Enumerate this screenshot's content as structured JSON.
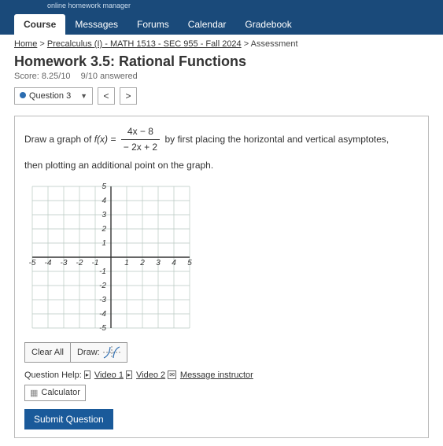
{
  "site": {
    "tagline": "online homework manager"
  },
  "nav": {
    "items": [
      {
        "label": "Course",
        "active": true
      },
      {
        "label": "Messages"
      },
      {
        "label": "Forums"
      },
      {
        "label": "Calendar"
      },
      {
        "label": "Gradebook"
      }
    ]
  },
  "breadcrumb": {
    "home": "Home",
    "course": "Precalculus (I) - MATH 1513 - SEC 955 - Fall 2024",
    "current": "Assessment"
  },
  "header": {
    "title": "Homework 3.5: Rational Functions",
    "score_label": "Score: 8.25/10",
    "answered_label": "9/10 answered"
  },
  "qnav": {
    "current": "Question 3",
    "prev": "<",
    "next": ">"
  },
  "question": {
    "prompt_before": "Draw a graph of ",
    "func_lhs": "f(x) = ",
    "numerator": "4x − 8",
    "denominator": "− 2x + 2",
    "prompt_mid": " by first placing the horizontal and vertical asymptotes,",
    "prompt_after": "then plotting an additional point on the graph.",
    "graph": {
      "x_min": -5,
      "x_max": 5,
      "y_min": -5,
      "y_max": 5,
      "tick_step": 1,
      "grid_color": "#b9c8c0",
      "axis_color": "#333333",
      "label_fontsize": 10,
      "background_color": "#ffffff",
      "x_ticks": [
        -5,
        -4,
        -3,
        -2,
        -1,
        1,
        2,
        3,
        4,
        5
      ],
      "y_ticks": [
        -5,
        -4,
        -3,
        -2,
        -1,
        1,
        2,
        3,
        4,
        5
      ]
    },
    "toolbar": {
      "clear": "Clear All",
      "draw": "Draw:"
    },
    "help": {
      "label": "Question Help:",
      "video1": "Video 1",
      "video2": "Video 2",
      "message": "Message instructor",
      "calculator": "Calculator"
    },
    "submit": "Submit Question"
  }
}
